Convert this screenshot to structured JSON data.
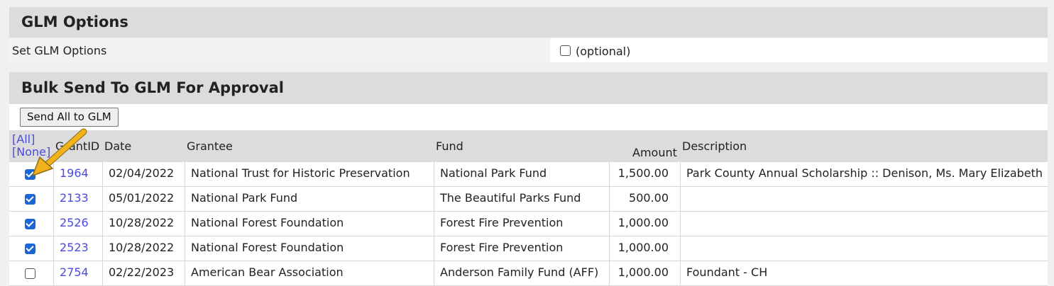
{
  "glm_options": {
    "title": "GLM Options",
    "set_label": "Set GLM Options",
    "optional_text": "(optional)"
  },
  "bulk": {
    "title": "Bulk Send To GLM For Approval",
    "send_button": "Send All to GLM"
  },
  "table": {
    "select_all": "[All]",
    "select_none": "[None]",
    "headers": {
      "grantid": "GrantID",
      "date": "Date",
      "grantee": "Grantee",
      "fund": "Fund",
      "amount": "Amount",
      "description": "Description"
    },
    "rows": [
      {
        "checked": true,
        "id": "1964",
        "date": "02/04/2022",
        "grantee": "National Trust for Historic Preservation",
        "fund": "National Park Fund",
        "amount": "1,500.00",
        "description": "Park County Annual Scholarship :: Denison, Ms. Mary Elizabeth"
      },
      {
        "checked": true,
        "id": "2133",
        "date": "05/01/2022",
        "grantee": "National Park Fund",
        "fund": "The Beautiful Parks Fund",
        "amount": "500.00",
        "description": ""
      },
      {
        "checked": true,
        "id": "2526",
        "date": "10/28/2022",
        "grantee": "National Forest Foundation",
        "fund": "Forest Fire Prevention",
        "amount": "1,000.00",
        "description": ""
      },
      {
        "checked": true,
        "id": "2523",
        "date": "10/28/2022",
        "grantee": "National Forest Foundation",
        "fund": "Forest Fire Prevention",
        "amount": "1,000.00",
        "description": ""
      },
      {
        "checked": false,
        "id": "2754",
        "date": "02/22/2023",
        "grantee": "American Bear Association",
        "fund": "Anderson Family Fund (AFF)",
        "amount": "1,000.00",
        "description": "Foundant - CH"
      }
    ]
  },
  "colors": {
    "header_bg": "#dcdcdc",
    "link": "#4a4adb",
    "checkbox_on": "#1a66d6",
    "arrow": "#f2b21c"
  },
  "icons": {
    "annotation": "arrow-icon"
  }
}
